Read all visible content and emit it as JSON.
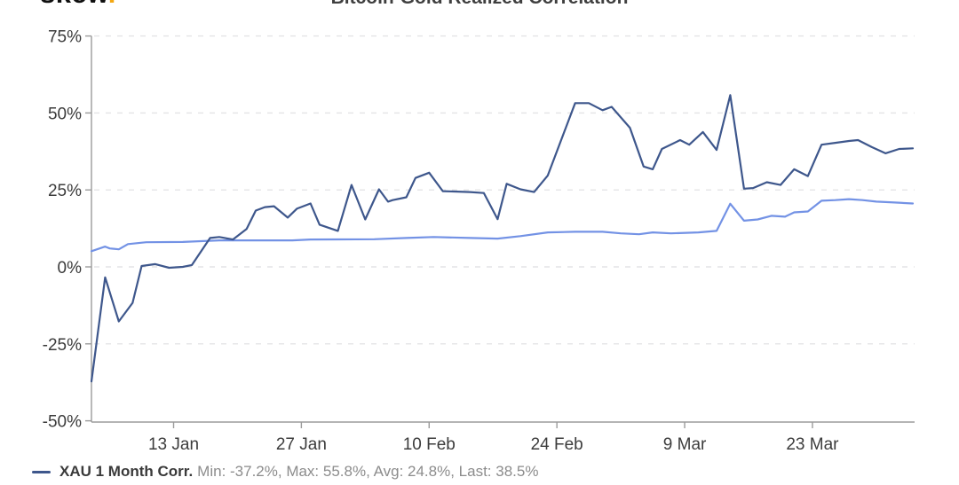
{
  "header": {
    "logo_text": "skew",
    "logo_dot": ".",
    "title": "Bitcoin-Gold Realized Correlation"
  },
  "legend": {
    "series_label": "XAU 1 Month Corr.",
    "stats": "Min: -37.2%, Max: 55.8%, Avg: 24.8%, Last: 38.5%"
  },
  "colors": {
    "primary_line": "#3e578c",
    "secondary_line": "#7392e5",
    "grid": "#e4e4e6",
    "axis": "#9b9b9b",
    "tick_text": "#3c3c3c",
    "logo_dot": "#f3a712",
    "title_text": "#3f3f3f"
  },
  "chart_data": {
    "type": "line",
    "title": "Bitcoin-Gold Realized Correlation",
    "xlabel": "",
    "ylabel": "",
    "ylim": [
      -50,
      75
    ],
    "grid": "horizontal-dashed",
    "legend_position": "bottom-left",
    "y_ticks": [
      {
        "label": "75%",
        "value": 75
      },
      {
        "label": "50%",
        "value": 50
      },
      {
        "label": "25%",
        "value": 25
      },
      {
        "label": "0%",
        "value": 0
      },
      {
        "label": "-25%",
        "value": -25
      },
      {
        "label": "-50%",
        "value": -50
      }
    ],
    "x_ticks": [
      {
        "label": "13 Jan",
        "day": 9
      },
      {
        "label": "27 Jan",
        "day": 23
      },
      {
        "label": "10 Feb",
        "day": 37
      },
      {
        "label": "24 Feb",
        "day": 51
      },
      {
        "label": "9 Mar",
        "day": 65
      },
      {
        "label": "23 Mar",
        "day": 79
      }
    ],
    "x_domain_days": [
      0,
      90
    ],
    "x_domain_note": "day 0 = 4 Jan, day 90 = 3 Apr",
    "series": [
      {
        "name": "XAU 1 Month Corr.",
        "color": "#3e578c",
        "stats": {
          "min": -37.2,
          "max": 55.8,
          "avg": 24.8,
          "last": 38.5
        },
        "points": [
          [
            0,
            -37.2
          ],
          [
            1.5,
            -3.4
          ],
          [
            3,
            -17.7
          ],
          [
            4.5,
            -11.7
          ],
          [
            5.5,
            0.3
          ],
          [
            7,
            0.9
          ],
          [
            8.5,
            -0.3
          ],
          [
            10,
            0.0
          ],
          [
            11,
            0.6
          ],
          [
            13,
            9.4
          ],
          [
            14,
            9.7
          ],
          [
            15.5,
            8.9
          ],
          [
            17,
            12.3
          ],
          [
            18,
            18.3
          ],
          [
            19,
            19.4
          ],
          [
            20,
            19.7
          ],
          [
            21.5,
            16.0
          ],
          [
            22.5,
            18.9
          ],
          [
            24,
            20.6
          ],
          [
            25,
            13.7
          ],
          [
            27,
            11.7
          ],
          [
            28.5,
            26.6
          ],
          [
            30,
            15.4
          ],
          [
            31.5,
            25.2
          ],
          [
            32.5,
            21.2
          ],
          [
            33,
            21.7
          ],
          [
            34.5,
            22.6
          ],
          [
            35.5,
            28.9
          ],
          [
            37,
            30.6
          ],
          [
            38.5,
            24.6
          ],
          [
            41.5,
            24.3
          ],
          [
            43,
            24.0
          ],
          [
            44.5,
            15.5
          ],
          [
            45.5,
            27.0
          ],
          [
            47,
            25.2
          ],
          [
            48.5,
            24.3
          ],
          [
            50,
            29.7
          ],
          [
            53,
            53.2
          ],
          [
            54.5,
            53.2
          ],
          [
            56,
            50.9
          ],
          [
            57,
            52.0
          ],
          [
            59,
            45.2
          ],
          [
            60.5,
            32.6
          ],
          [
            61.5,
            31.7
          ],
          [
            62.5,
            38.3
          ],
          [
            64.5,
            41.2
          ],
          [
            65.5,
            39.7
          ],
          [
            67,
            43.8
          ],
          [
            68.5,
            38.0
          ],
          [
            70,
            55.8
          ],
          [
            71.5,
            25.4
          ],
          [
            72.5,
            25.6
          ],
          [
            74,
            27.5
          ],
          [
            75.5,
            26.6
          ],
          [
            77,
            31.7
          ],
          [
            78.5,
            29.5
          ],
          [
            80,
            39.7
          ],
          [
            81.5,
            40.3
          ],
          [
            83,
            40.9
          ],
          [
            84,
            41.2
          ],
          [
            85.5,
            38.9
          ],
          [
            87,
            36.9
          ],
          [
            88.5,
            38.3
          ],
          [
            90,
            38.5
          ]
        ]
      },
      {
        "name": "",
        "color": "#7392e5",
        "points": [
          [
            0,
            5.1
          ],
          [
            1.5,
            6.6
          ],
          [
            2,
            6.0
          ],
          [
            3,
            5.7
          ],
          [
            4,
            7.4
          ],
          [
            6,
            8.0
          ],
          [
            10,
            8.1
          ],
          [
            14,
            8.6
          ],
          [
            22,
            8.6
          ],
          [
            24,
            8.9
          ],
          [
            31,
            9.0
          ],
          [
            34.5,
            9.4
          ],
          [
            37.5,
            9.7
          ],
          [
            41.5,
            9.4
          ],
          [
            44.5,
            9.2
          ],
          [
            47,
            10.0
          ],
          [
            50,
            11.2
          ],
          [
            53,
            11.4
          ],
          [
            56,
            11.4
          ],
          [
            58,
            10.9
          ],
          [
            60,
            10.6
          ],
          [
            61.5,
            11.2
          ],
          [
            63.5,
            10.9
          ],
          [
            66.5,
            11.2
          ],
          [
            68.5,
            11.7
          ],
          [
            70,
            20.5
          ],
          [
            71.5,
            15.0
          ],
          [
            73,
            15.4
          ],
          [
            74.5,
            16.6
          ],
          [
            76,
            16.3
          ],
          [
            77,
            17.7
          ],
          [
            78.5,
            18.0
          ],
          [
            80,
            21.5
          ],
          [
            81.5,
            21.7
          ],
          [
            83,
            22.0
          ],
          [
            84.5,
            21.7
          ],
          [
            86,
            21.2
          ],
          [
            88,
            20.9
          ],
          [
            90,
            20.6
          ]
        ]
      }
    ]
  }
}
